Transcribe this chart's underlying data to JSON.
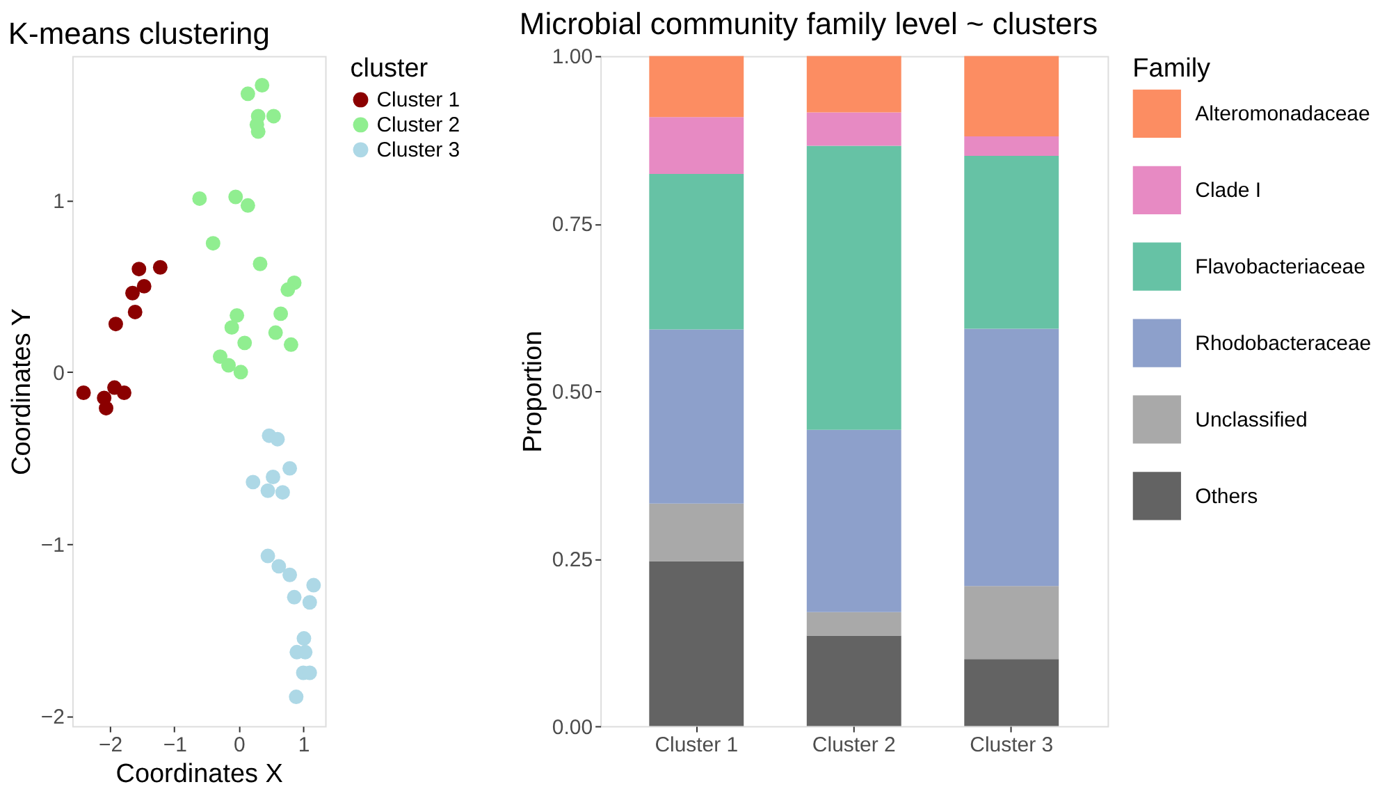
{
  "chart_data": [
    {
      "type": "scatter",
      "title": "K-means clustering",
      "xlabel": "Coordinates X",
      "ylabel": "Coordinates Y",
      "legend_title": "cluster",
      "legend": "right",
      "marker": "circle",
      "grid": false,
      "xlim": [
        -2.585,
        1.34
      ],
      "ylim": [
        -2.06,
        1.84
      ],
      "xticks": [
        -2,
        -1,
        0,
        1
      ],
      "yticks": [
        -2,
        -1,
        0,
        1
      ],
      "series": [
        {
          "name": "Cluster 1",
          "color": "#8b0000",
          "x": [
            -1.55,
            -1.22,
            -1.65,
            -1.47,
            -1.61,
            -1.91,
            -2.41,
            -1.93,
            -2.09,
            -1.78,
            -2.06
          ],
          "values": [
            0.6,
            0.61,
            0.46,
            0.5,
            0.35,
            0.28,
            -0.12,
            -0.09,
            -0.15,
            -0.12,
            -0.21
          ]
        },
        {
          "name": "Cluster 2",
          "color": "#90ee90",
          "x": [
            0.36,
            0.14,
            0.54,
            0.3,
            0.28,
            0.3,
            -0.61,
            -0.05,
            0.14,
            -0.4,
            0.33,
            0.86,
            0.76,
            -0.03,
            -0.11,
            0.65,
            0.57,
            0.09,
            0.81,
            -0.29,
            -0.16,
            0.03
          ],
          "values": [
            1.67,
            1.62,
            1.49,
            1.49,
            1.44,
            1.4,
            1.01,
            1.02,
            0.97,
            0.75,
            0.63,
            0.52,
            0.48,
            0.33,
            0.26,
            0.34,
            0.23,
            0.17,
            0.16,
            0.09,
            0.04,
            0.0
          ]
        },
        {
          "name": "Cluster 3",
          "color": "#add8e6",
          "x": [
            0.47,
            0.6,
            0.79,
            0.53,
            0.22,
            0.45,
            0.68,
            0.45,
            0.62,
            0.79,
            1.16,
            0.86,
            1.1,
            1.01,
            0.9,
            1.03,
            1.0,
            1.1,
            0.89
          ],
          "values": [
            -0.37,
            -0.39,
            -0.56,
            -0.61,
            -0.64,
            -0.69,
            -0.7,
            -1.07,
            -1.13,
            -1.18,
            -1.24,
            -1.31,
            -1.34,
            -1.55,
            -1.63,
            -1.63,
            -1.75,
            -1.75,
            -1.89
          ]
        }
      ]
    },
    {
      "type": "bar",
      "stacked": true,
      "title": "Microbial community family level ~ clusters",
      "ylabel": "Proportion",
      "legend_title": "Family",
      "legend": "right",
      "grid": false,
      "categories": [
        "Cluster 1",
        "Cluster 2",
        "Cluster 3"
      ],
      "ylim": [
        0,
        1
      ],
      "yticks": [
        {
          "value": 0,
          "label": "0.00"
        },
        {
          "value": 0.25,
          "label": "0.25"
        },
        {
          "value": 0.5,
          "label": "0.50"
        },
        {
          "value": 0.75,
          "label": "0.75"
        },
        {
          "value": 1,
          "label": "1.00"
        }
      ],
      "series": [
        {
          "name": "Others",
          "color": "#636363",
          "values": [
            0.246,
            0.135,
            0.1
          ]
        },
        {
          "name": "Unclassified",
          "color": "#a9a9a9",
          "values": [
            0.086,
            0.035,
            0.109
          ]
        },
        {
          "name": "Rhodobacteraceae",
          "color": "#8da0cb",
          "values": [
            0.26,
            0.272,
            0.384
          ]
        },
        {
          "name": "Flavobacteriaceae",
          "color": "#66c2a5",
          "values": [
            0.232,
            0.424,
            0.258
          ]
        },
        {
          "name": "Clade I",
          "color": "#e78ac3",
          "values": [
            0.085,
            0.05,
            0.029
          ]
        },
        {
          "name": "Alteromonadaceae",
          "color": "#fc8d62",
          "values": [
            0.091,
            0.084,
            0.12
          ]
        }
      ]
    }
  ]
}
